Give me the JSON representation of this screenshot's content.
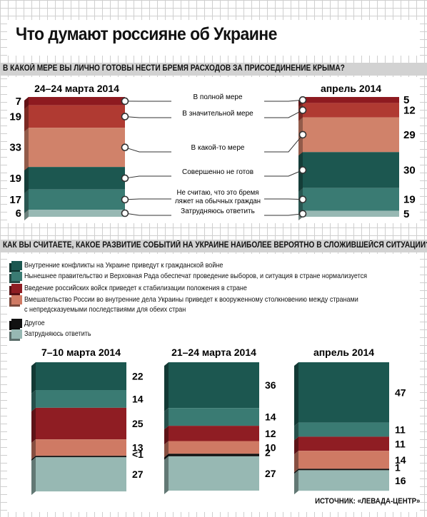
{
  "header": {
    "title": "Что думают россияне об Украине"
  },
  "colors": {
    "c1": "#1c5750",
    "c2": "#3a7b73",
    "c3": "#8f1d23",
    "c4": "#cf7a64",
    "c5": "#111111",
    "c6": "#97b8b3",
    "dark_red": "#8e1a20",
    "red": "#b03a32",
    "salmon": "#d0826a"
  },
  "chart_data": [
    {
      "type": "stacked-bar",
      "title": "В КАКОЙ МЕРЕ ВЫ ЛИЧНО ГОТОВЫ НЕСТИ БРЕМЯ РАСХОДОВ ЗА ПРИСОЕДИНЕНИЕ КРЫМА?",
      "categories": [
        "В полной мере",
        "В значительной мере",
        "В какой-то мере",
        "Совершенно не готов",
        "Не считаю, что это бремя ляжет на обычных граждан",
        "Затрудняюсь ответить"
      ],
      "series": [
        {
          "name": "24–24 марта 2014",
          "values": [
            7,
            19,
            33,
            19,
            17,
            6
          ]
        },
        {
          "name": "апрель 2014",
          "values": [
            5,
            12,
            29,
            30,
            19,
            5
          ]
        }
      ]
    },
    {
      "type": "stacked-bar",
      "title": "КАК ВЫ СЧИТАЕТЕ, КАКОЕ РАЗВИТИЕ СОБЫТИЙ НА УКРАИНЕ НАИБОЛЕЕ ВЕРОЯТНО В СЛОЖИВШЕЙСЯ СИТУАЦИИ?",
      "categories": [
        "Внутренние конфликты на Украине приведут к гражданской войне",
        "Нынешнее правительство и Верховная Рада обеспечат проведение выборов, и ситуация в стране нормализуется",
        "Введение российских войск приведет к стабилизации положения в стране",
        "Вмешательство России во внутренние дела Украины приведет к вооруженному столкновению между странами с непредсказуемыми последствиями для обеих стран",
        "Другое",
        "Затрудняюсь ответить"
      ],
      "series": [
        {
          "name": "7–10 марта 2014",
          "values": [
            22,
            14,
            25,
            13,
            0.5,
            27
          ],
          "labels": [
            "22",
            "14",
            "25",
            "13",
            "<1",
            "27"
          ]
        },
        {
          "name": "21–24 марта 2014",
          "values": [
            36,
            14,
            12,
            10,
            2,
            27
          ],
          "labels": [
            "36",
            "14",
            "12",
            "10",
            "2",
            "27"
          ]
        },
        {
          "name": "апрель 2014",
          "values": [
            47,
            11,
            11,
            14,
            1,
            16
          ],
          "labels": [
            "47",
            "11",
            "11",
            "14",
            "1",
            "16"
          ]
        }
      ]
    }
  ],
  "legend1": [
    {
      "text": "В полной мере"
    },
    {
      "text": "В значительной мере"
    },
    {
      "text": "В какой-то мере"
    },
    {
      "text": "Совершенно не готов"
    },
    {
      "lines": [
        "Не считаю, что это бремя",
        "ляжет на обычных граждан"
      ]
    },
    {
      "text": "Затрудняюсь ответить"
    }
  ],
  "legend2": [
    {
      "lines": [
        "Внутренние конфликты на Украине приведут к гражданской войне"
      ]
    },
    {
      "lines": [
        "Нынешнее правительство и Верховная Рада обеспечат проведение выборов, и ситуация в стране нормализуется"
      ]
    },
    {
      "lines": [
        "Введение российских войск приведет к стабилизации положения в стране"
      ]
    },
    {
      "lines": [
        "Вмешательство России во внутренние дела Украины приведет к вооруженному столкновению между странами",
        "с непредсказуемыми последствиями для обеих стран"
      ]
    },
    {
      "lines": [
        "Другое"
      ]
    },
    {
      "lines": [
        "Затрудняюсь ответить"
      ]
    }
  ],
  "source": "ИСТОЧНИК: «ЛЕВАДА-ЦЕНТР»"
}
